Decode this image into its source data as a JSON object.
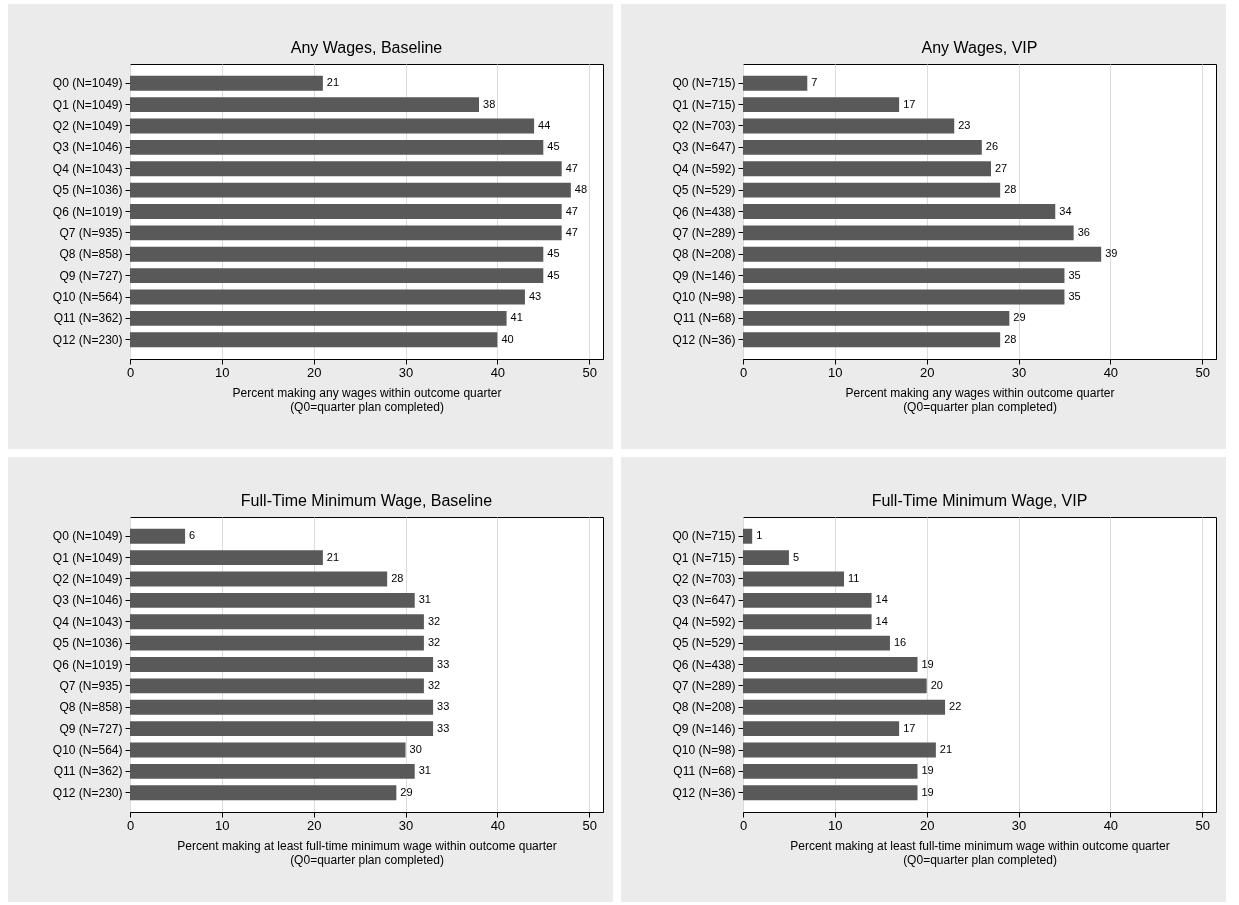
{
  "chart_data": [
    {
      "type": "bar",
      "orientation": "horizontal",
      "title": "Any Wages, Baseline",
      "xlabel": "Percent making any wages within outcome quarter\n(Q0=quarter plan completed)",
      "categories": [
        "Q0 (N=1049)",
        "Q1 (N=1049)",
        "Q2 (N=1049)",
        "Q3 (N=1046)",
        "Q4 (N=1043)",
        "Q5 (N=1036)",
        "Q6 (N=1019)",
        "Q7 (N=935)",
        "Q8 (N=858)",
        "Q9 (N=727)",
        "Q10 (N=564)",
        "Q11 (N=362)",
        "Q12 (N=230)"
      ],
      "values": [
        21,
        38,
        44,
        45,
        47,
        48,
        47,
        47,
        45,
        45,
        43,
        41,
        40
      ],
      "color": "#595959",
      "xlim": [
        0,
        51.5
      ],
      "xticks": [
        0,
        10,
        20,
        30,
        40,
        50
      ],
      "grid": "x",
      "data_labels": true
    },
    {
      "type": "bar",
      "orientation": "horizontal",
      "title": "Any Wages, VIP",
      "xlabel": "Percent making any wages within outcome quarter\n(Q0=quarter plan completed)",
      "categories": [
        "Q0 (N=715)",
        "Q1 (N=715)",
        "Q2 (N=703)",
        "Q3 (N=647)",
        "Q4 (N=592)",
        "Q5 (N=529)",
        "Q6 (N=438)",
        "Q7 (N=289)",
        "Q8 (N=208)",
        "Q9 (N=146)",
        "Q10 (N=98)",
        "Q11 (N=68)",
        "Q12 (N=36)"
      ],
      "values": [
        7,
        17,
        23,
        26,
        27,
        28,
        34,
        36,
        39,
        35,
        35,
        29,
        28
      ],
      "color": "#595959",
      "xlim": [
        0,
        51.5
      ],
      "xticks": [
        0,
        10,
        20,
        30,
        40,
        50
      ],
      "grid": "x",
      "data_labels": true
    },
    {
      "type": "bar",
      "orientation": "horizontal",
      "title": "Full-Time Minimum Wage, Baseline",
      "xlabel": "Percent making at least full-time minimum wage within outcome quarter\n(Q0=quarter plan completed)",
      "categories": [
        "Q0 (N=1049)",
        "Q1 (N=1049)",
        "Q2 (N=1049)",
        "Q3 (N=1046)",
        "Q4 (N=1043)",
        "Q5 (N=1036)",
        "Q6 (N=1019)",
        "Q7 (N=935)",
        "Q8 (N=858)",
        "Q9 (N=727)",
        "Q10 (N=564)",
        "Q11 (N=362)",
        "Q12 (N=230)"
      ],
      "values": [
        6,
        21,
        28,
        31,
        32,
        32,
        33,
        32,
        33,
        33,
        30,
        31,
        29
      ],
      "color": "#595959",
      "xlim": [
        0,
        51.5
      ],
      "xticks": [
        0,
        10,
        20,
        30,
        40,
        50
      ],
      "grid": "x",
      "data_labels": true
    },
    {
      "type": "bar",
      "orientation": "horizontal",
      "title": "Full-Time Minimum Wage, VIP",
      "xlabel": "Percent making at least full-time minimum wage within outcome quarter\n(Q0=quarter plan completed)",
      "categories": [
        "Q0 (N=715)",
        "Q1 (N=715)",
        "Q2 (N=703)",
        "Q3 (N=647)",
        "Q4 (N=592)",
        "Q5 (N=529)",
        "Q6 (N=438)",
        "Q7 (N=289)",
        "Q8 (N=208)",
        "Q9 (N=146)",
        "Q10 (N=98)",
        "Q11 (N=68)",
        "Q12 (N=36)"
      ],
      "values": [
        1,
        5,
        11,
        14,
        14,
        16,
        19,
        20,
        22,
        17,
        21,
        19,
        19
      ],
      "color": "#595959",
      "xlim": [
        0,
        51.5
      ],
      "xticks": [
        0,
        10,
        20,
        30,
        40,
        50
      ],
      "grid": "x",
      "data_labels": true
    }
  ]
}
